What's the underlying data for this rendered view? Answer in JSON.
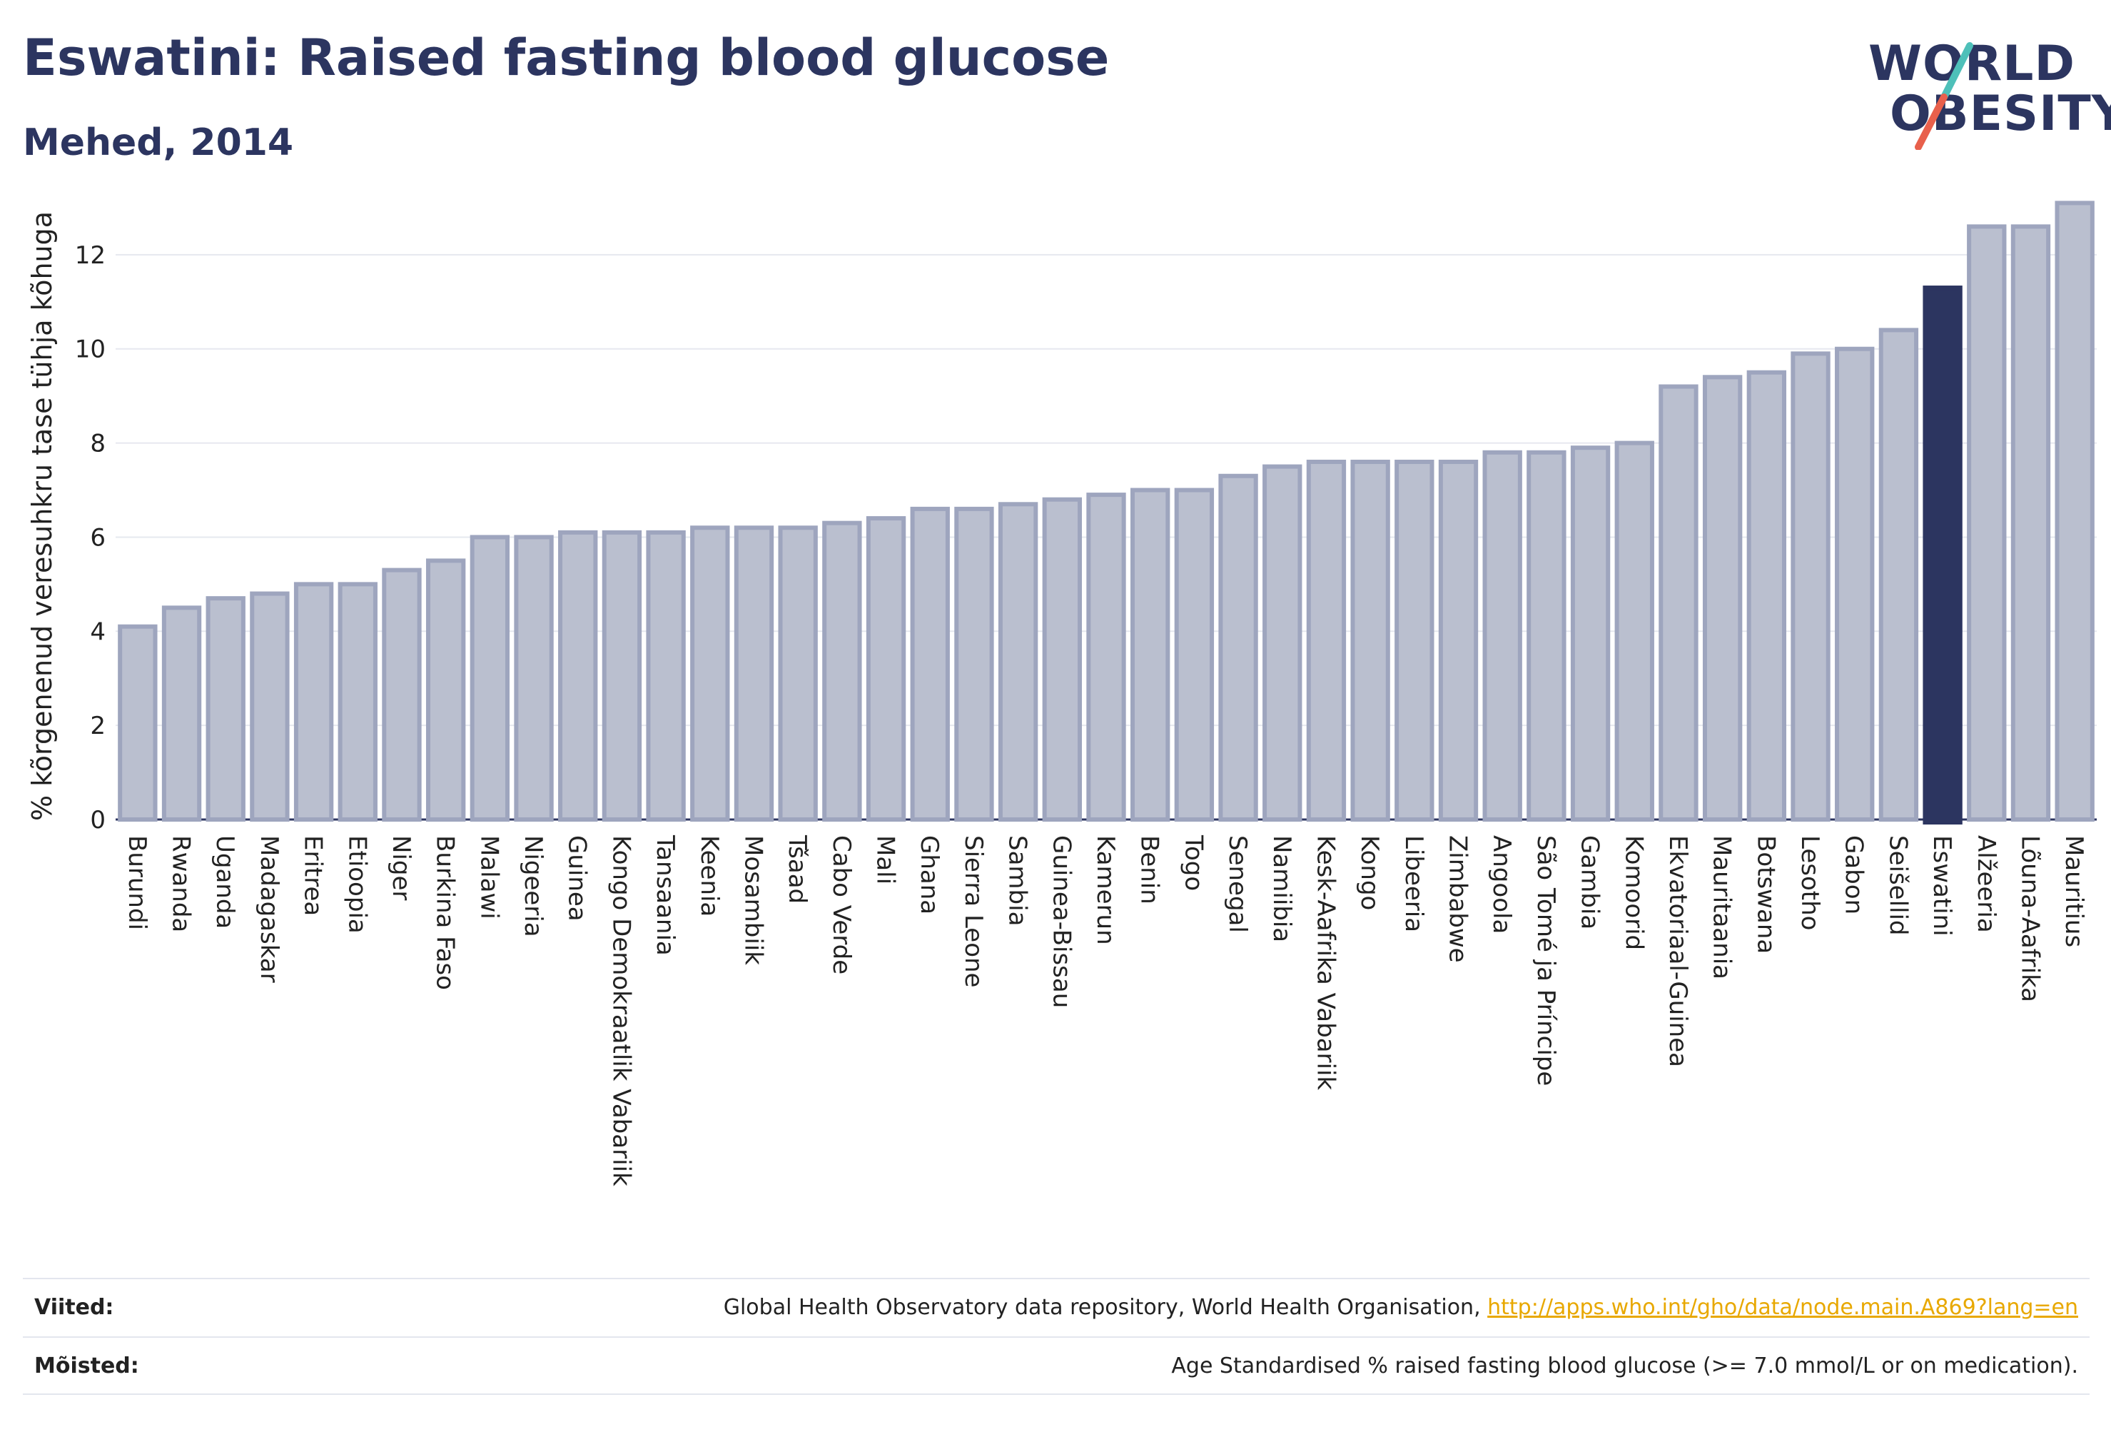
{
  "title": "Eswatini: Raised fasting blood glucose",
  "subtitle": "Mehed, 2014",
  "logo": {
    "line1": "WORLD",
    "line2": "OBESITY",
    "slash_color_top": "#4ec0b9",
    "slash_color_bottom": "#e8604c"
  },
  "colors": {
    "bar": "#babfcf",
    "bar_border": "#9ea5be",
    "highlight": "#2c3560",
    "grid": "#e6e8ef",
    "axis": "#2c3560"
  },
  "chart_data": {
    "type": "bar",
    "title": "Eswatini: Raised fasting blood glucose",
    "subtitle": "Mehed, 2014",
    "xlabel": "",
    "ylabel": "% kõrgenenud veresuhkru tase tühja kõhuga",
    "ylim": [
      0,
      13.5
    ],
    "yticks": [
      0,
      2,
      4,
      6,
      8,
      10,
      12
    ],
    "grid": true,
    "highlight": "Eswatini",
    "categories": [
      "Burundi",
      "Rwanda",
      "Uganda",
      "Madagaskar",
      "Eritrea",
      "Etioopia",
      "Niger",
      "Burkina Faso",
      "Malawi",
      "Nigeeria",
      "Guinea",
      "Kongo Demokraatlik Vabariik",
      "Tansaania",
      "Keenia",
      "Mosambiik",
      "Tšaad",
      "Cabo Verde",
      "Mali",
      "Ghana",
      "Sierra Leone",
      "Sambia",
      "Guinea-Bissau",
      "Kamerun",
      "Benin",
      "Togo",
      "Senegal",
      "Namiibia",
      "Kesk-Aafrika Vabariik",
      "Kongo",
      "Libeeria",
      "Zimbabwe",
      "Angoola",
      "São Tomé ja Príncipe",
      "Gambia",
      "Komoorid",
      "Ekvatoriaal-Guinea",
      "Mauritaania",
      "Botswana",
      "Lesotho",
      "Gabon",
      "Seišellid",
      "Eswatini",
      "Alžeeria",
      "Lõuna-Aafrika",
      "Mauritius"
    ],
    "values": [
      4.1,
      4.5,
      4.7,
      4.8,
      5.0,
      5.0,
      5.3,
      5.5,
      6.0,
      6.0,
      6.1,
      6.1,
      6.1,
      6.2,
      6.2,
      6.2,
      6.3,
      6.4,
      6.6,
      6.6,
      6.7,
      6.8,
      6.9,
      7.0,
      7.0,
      7.3,
      7.5,
      7.6,
      7.6,
      7.6,
      7.6,
      7.8,
      7.8,
      7.9,
      8.0,
      9.2,
      9.4,
      9.5,
      9.9,
      10.0,
      10.4,
      11.3,
      12.6,
      12.6,
      13.1
    ]
  },
  "footer": {
    "sources_label": "Viited:",
    "sources_text": "Global Health Observatory data repository, World Health Organisation, ",
    "sources_link": "http://apps.who.int/gho/data/node.main.A869?lang=en",
    "definitions_label": "Mõisted:",
    "definitions_text": "Age Standardised % raised fasting blood glucose (>= 7.0 mmol/L or on medication)."
  }
}
